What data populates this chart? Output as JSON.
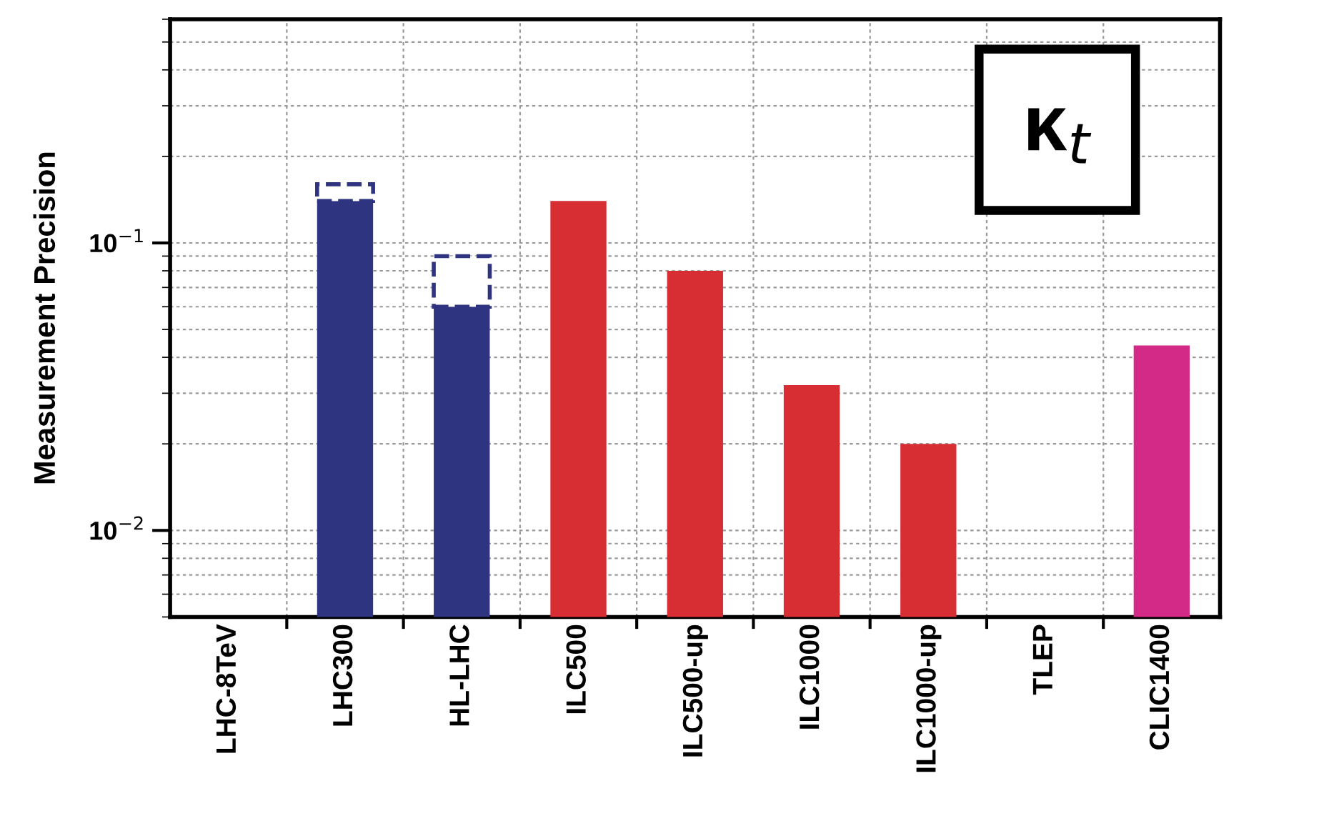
{
  "chart_data": {
    "type": "bar",
    "ylabel": "Measurement Precision",
    "categories": [
      "LHC-8TeV",
      "LHC300",
      "HL-LHC",
      "ILC500",
      "ILC500-up",
      "ILC1000",
      "ILC1000-up",
      "TLEP",
      "CLIC1400"
    ],
    "stacked": true,
    "series": [
      {
        "colors": [
          "#2e3480",
          "#2e3480",
          "#2e3480",
          "#d62e33",
          "#d62e33",
          "#d62e33",
          "#d62e33",
          "#d62e33",
          "#d42a87"
        ],
        "values": [
          null,
          0.14,
          0.06,
          0.14,
          0.08,
          0.032,
          0.02,
          null,
          0.044
        ]
      },
      {
        "color": "#2e3480",
        "line_style": "dashed",
        "values": [
          null,
          0.02,
          0.03,
          null,
          null,
          null,
          null,
          null,
          null
        ]
      }
    ],
    "log": "y",
    "ylim": [
      0.005,
      0.6
    ],
    "yticks": [
      {
        "value": 0.01,
        "label": "10$^{−2}$"
      },
      {
        "value": 0.1,
        "label": "10$^{−1}$"
      }
    ],
    "grid": true,
    "annotations": [
      "κ$_{t}$"
    ]
  }
}
